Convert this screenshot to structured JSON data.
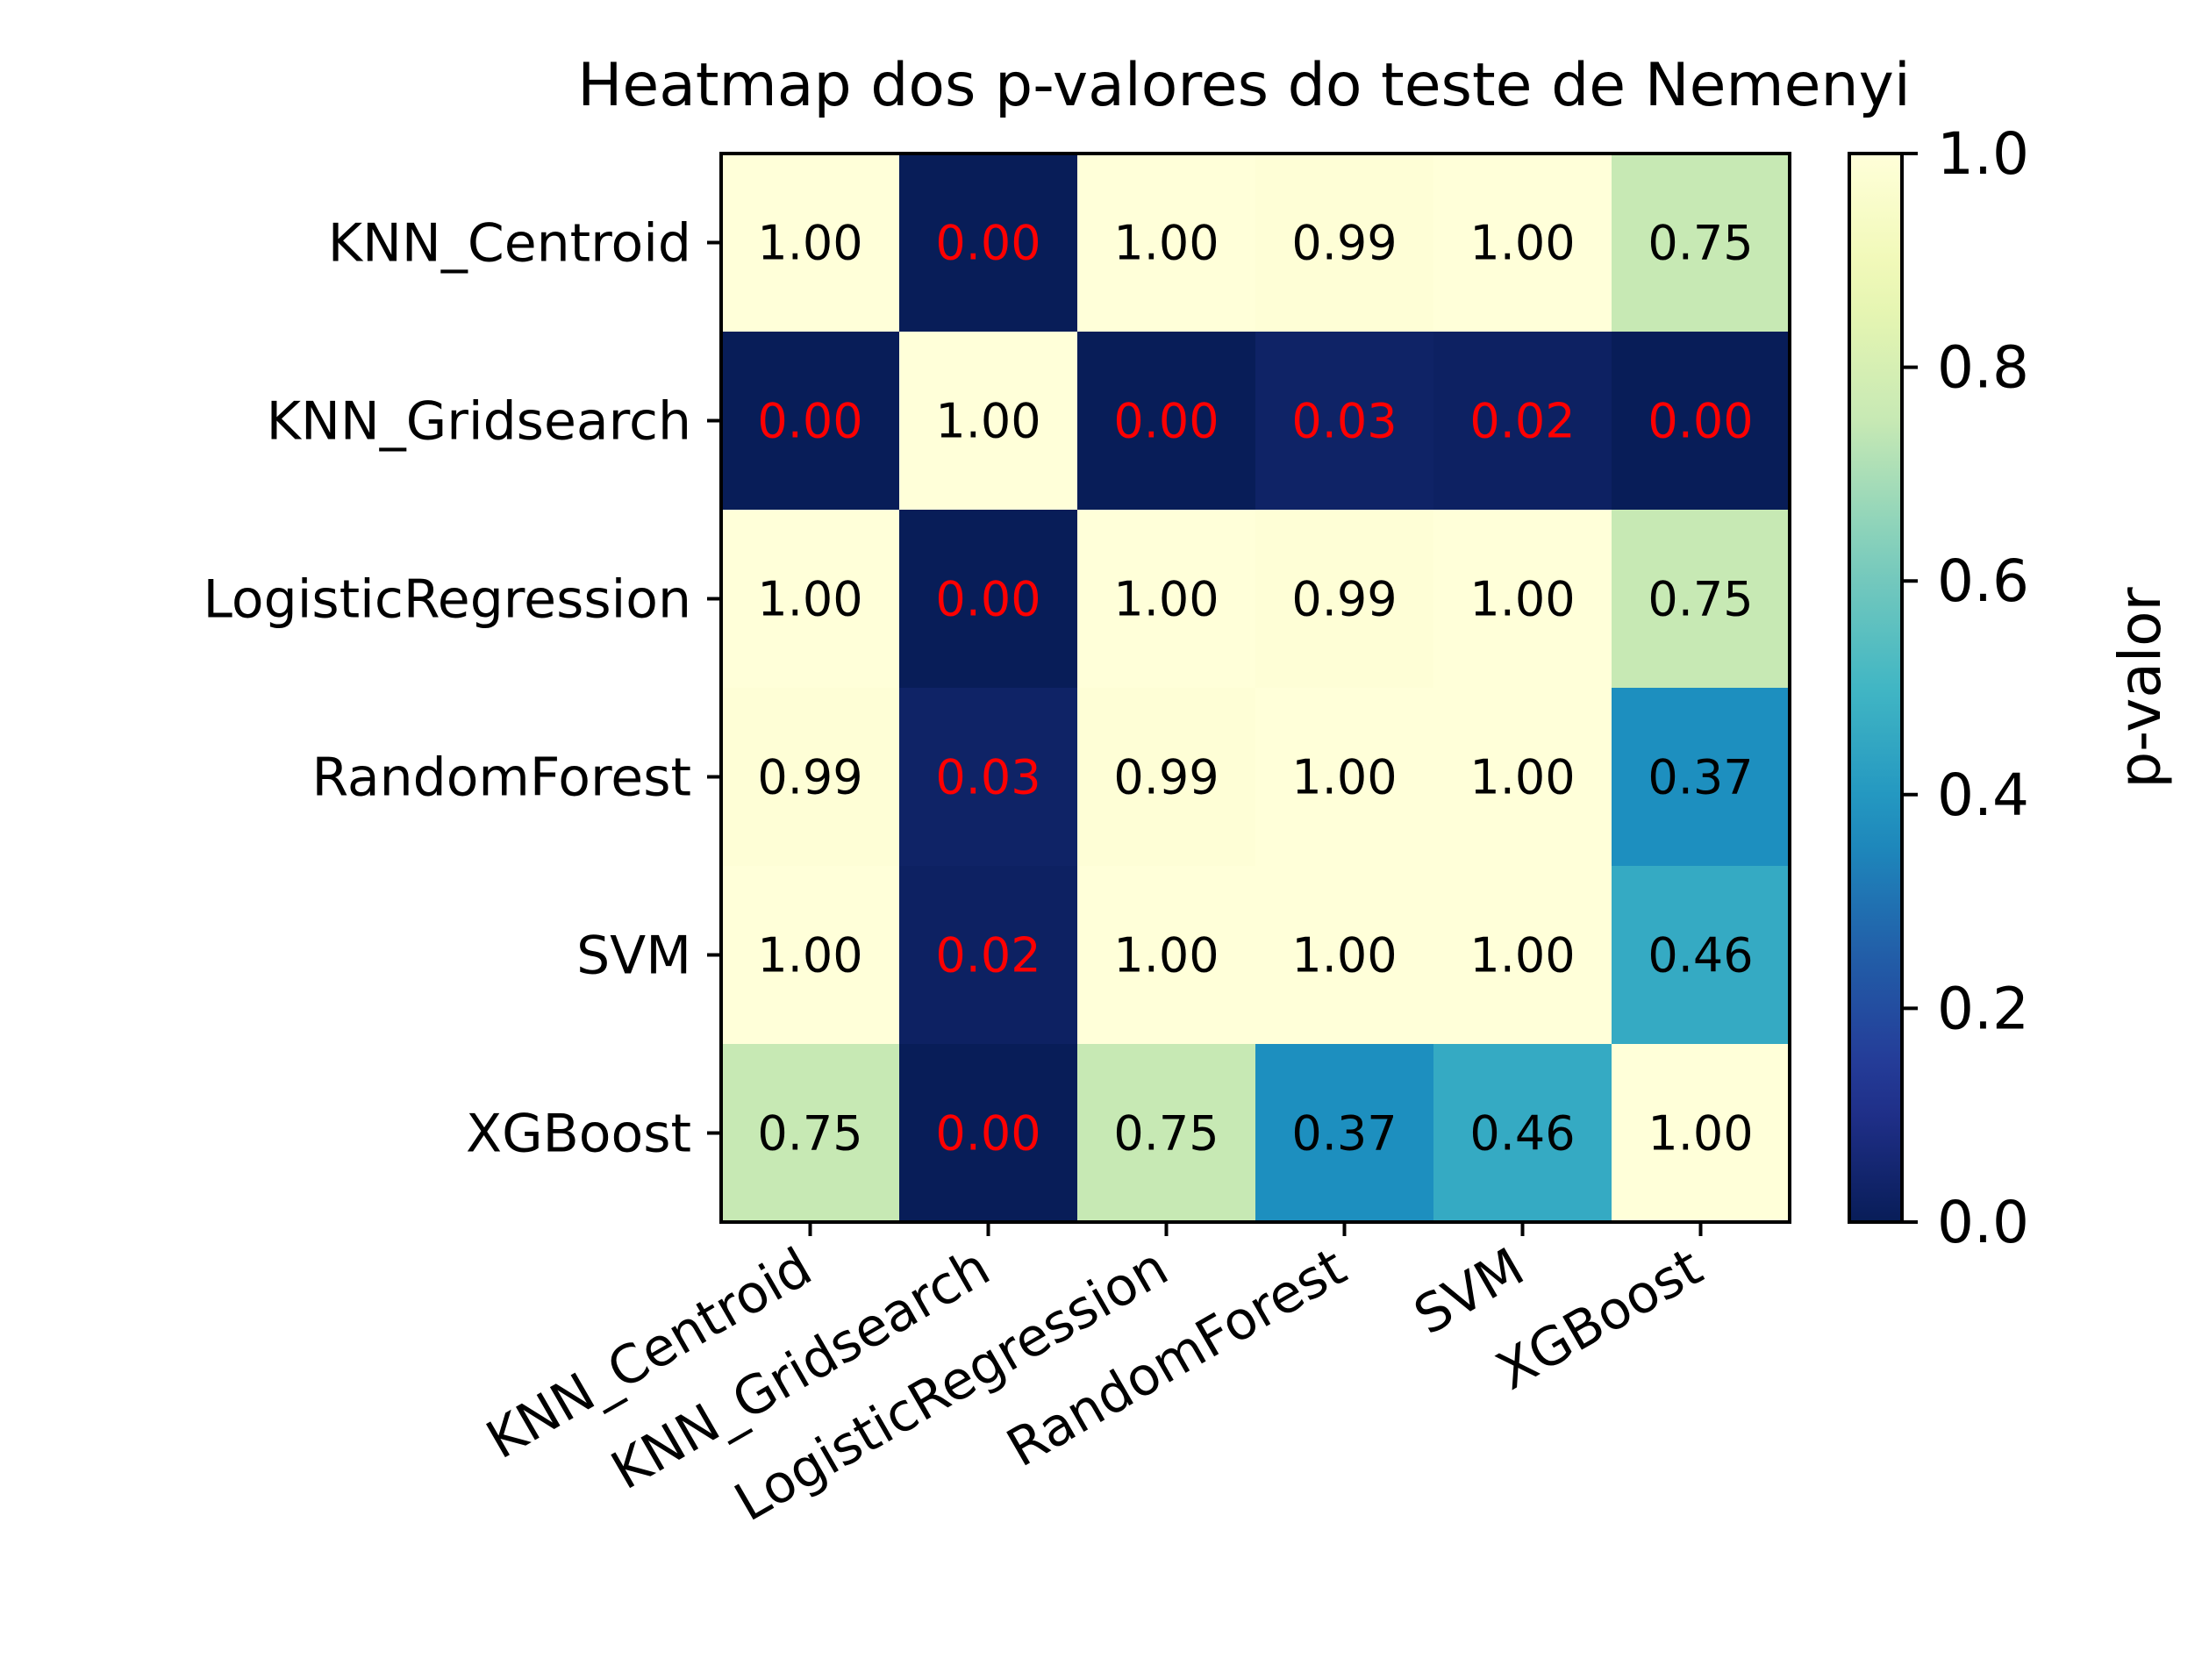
{
  "chart_data": {
    "type": "heatmap",
    "title": "Heatmap dos p-valores do teste de Nemenyi",
    "row_labels": [
      "KNN_Centroid",
      "KNN_Gridsearch",
      "LogisticRegression",
      "RandomForest",
      "SVM",
      "XGBoost"
    ],
    "col_labels": [
      "KNN_Centroid",
      "KNN_Gridsearch",
      "LogisticRegression",
      "RandomForest",
      "SVM",
      "XGBoost"
    ],
    "values": [
      [
        1.0,
        0.0,
        1.0,
        0.99,
        1.0,
        0.75
      ],
      [
        0.0,
        1.0,
        0.0,
        0.03,
        0.02,
        0.0
      ],
      [
        1.0,
        0.0,
        1.0,
        0.99,
        1.0,
        0.75
      ],
      [
        0.99,
        0.03,
        0.99,
        1.0,
        1.0,
        0.37
      ],
      [
        1.0,
        0.02,
        1.0,
        1.0,
        1.0,
        0.46
      ],
      [
        0.75,
        0.0,
        0.75,
        0.37,
        0.46,
        1.0
      ]
    ],
    "cell_labels": [
      [
        "1.00",
        "0.00",
        "1.00",
        "0.99",
        "1.00",
        "0.75"
      ],
      [
        "0.00",
        "1.00",
        "0.00",
        "0.03",
        "0.02",
        "0.00"
      ],
      [
        "1.00",
        "0.00",
        "1.00",
        "0.99",
        "1.00",
        "0.75"
      ],
      [
        "0.99",
        "0.03",
        "0.99",
        "1.00",
        "1.00",
        "0.37"
      ],
      [
        "1.00",
        "0.02",
        "1.00",
        "1.00",
        "1.00",
        "0.46"
      ],
      [
        "0.75",
        "0.00",
        "0.75",
        "0.37",
        "0.46",
        "1.00"
      ]
    ],
    "colormap": "YlGnBu_r",
    "colorbar": {
      "label": "p-valor",
      "range": [
        0,
        1
      ],
      "ticks": [
        0.0,
        0.2,
        0.4,
        0.6,
        0.8,
        1.0
      ],
      "tick_labels": [
        "0.0",
        "0.2",
        "0.4",
        "0.6",
        "0.8",
        "1.0"
      ]
    },
    "significance_threshold": 0.05,
    "significant_text_color": "#ff0000",
    "normal_text_color": "#000000",
    "grid": false
  }
}
